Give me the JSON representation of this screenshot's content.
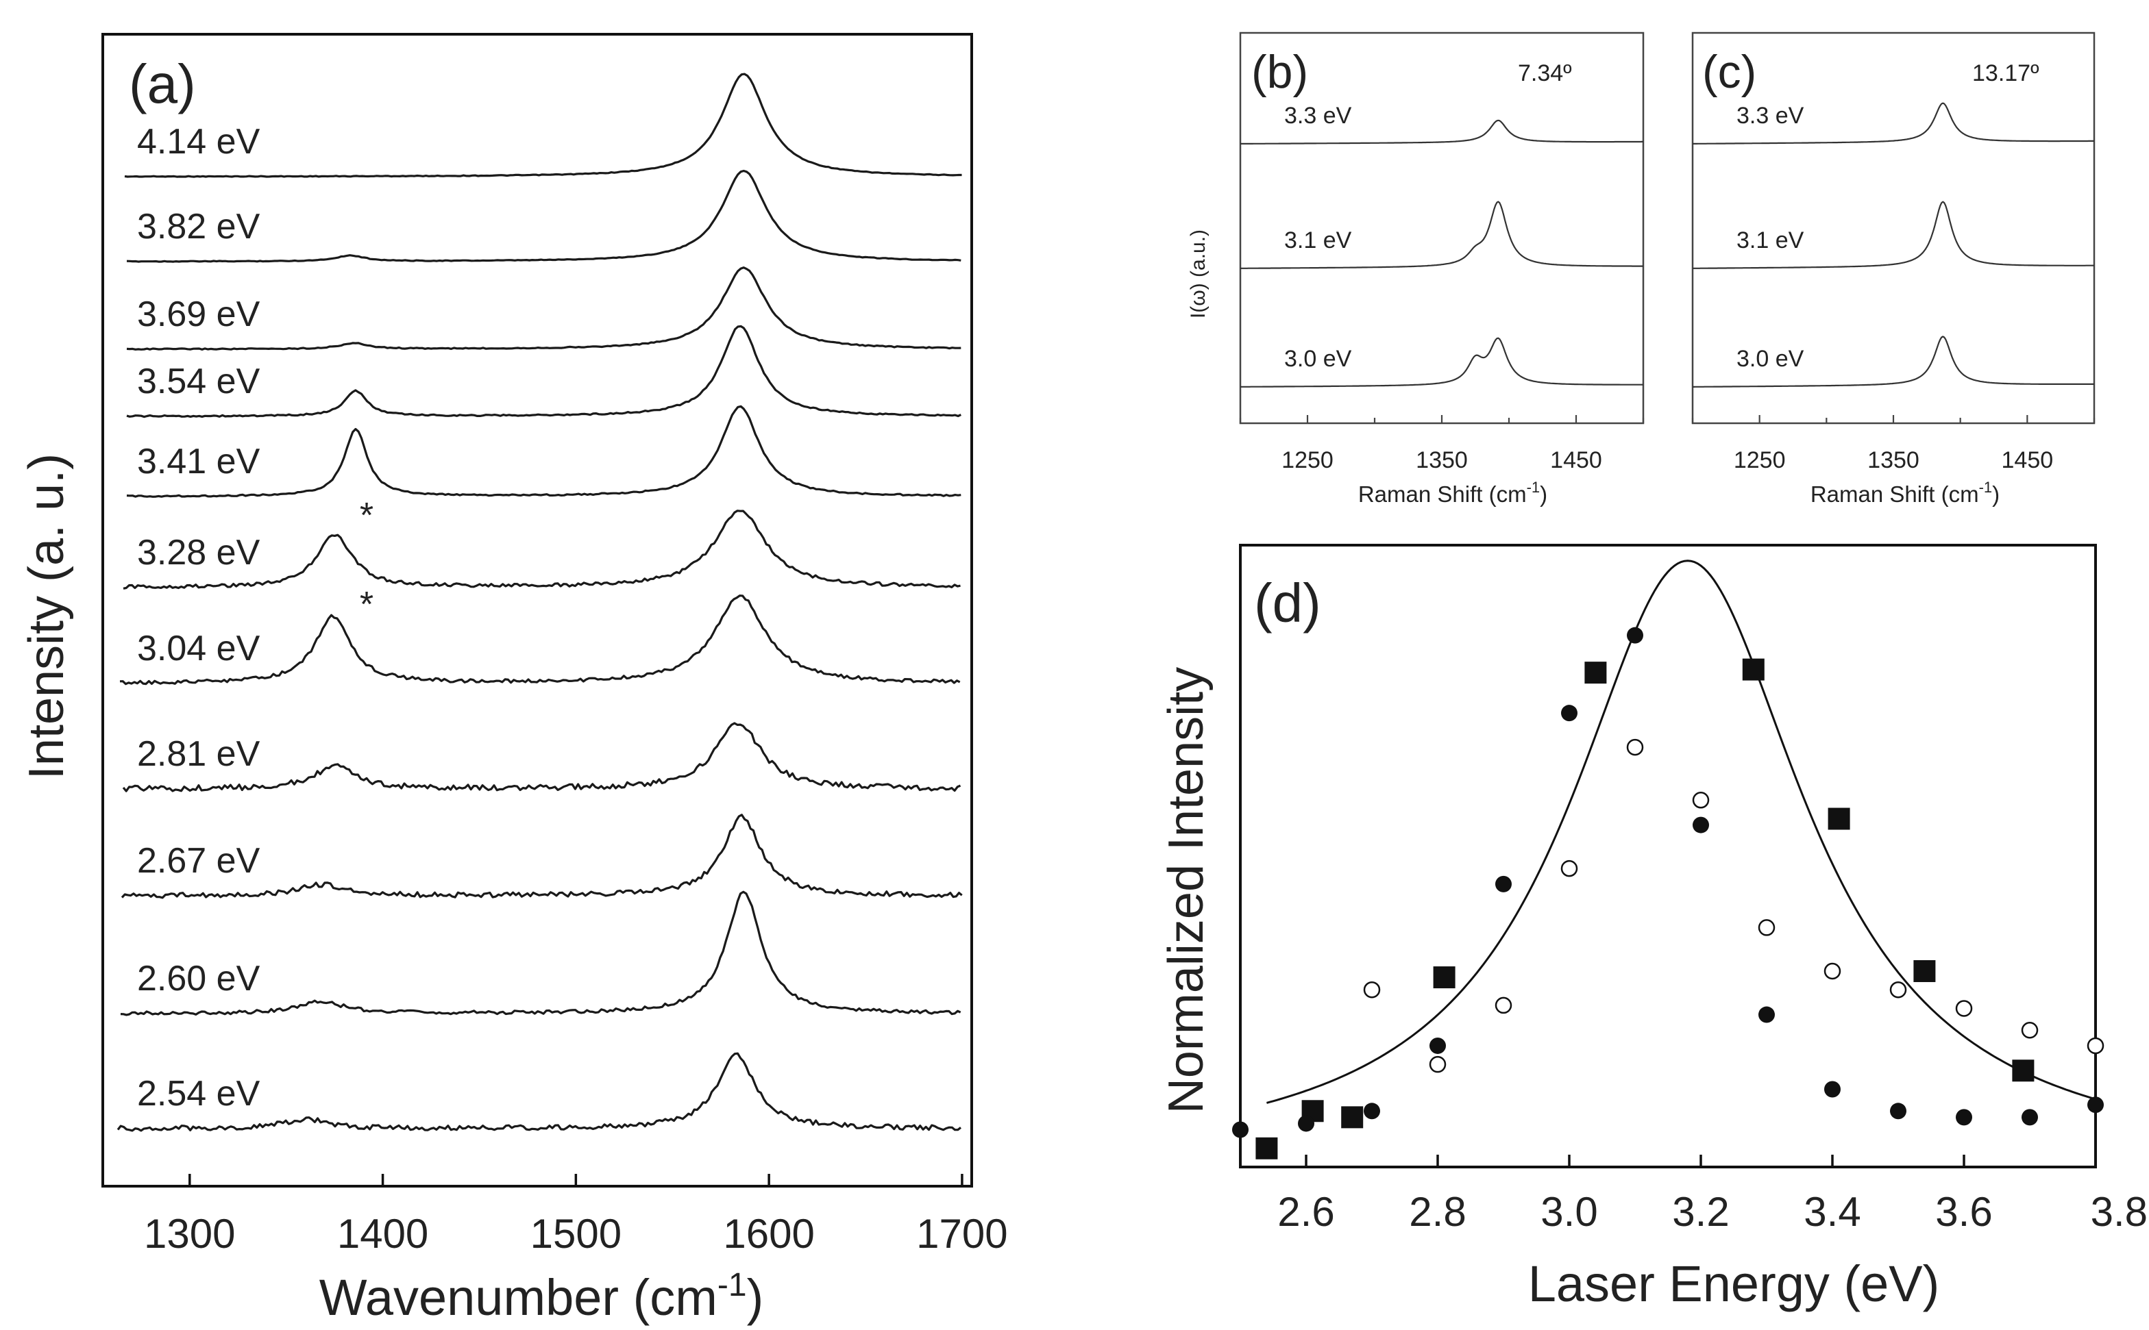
{
  "chart_data": [
    {
      "panel": "(a)",
      "type": "line",
      "xlabel": "Wavenumber (cm",
      "xlabel_sup": "-1",
      "xlabel_close": ")",
      "ylabel": "Intensity (a. u.)",
      "xlim": [
        1255,
        1705
      ],
      "xticks": [
        "1300",
        "1400",
        "1500",
        "1600",
        "1700"
      ],
      "xtick_values": [
        1300,
        1400,
        1500,
        1600,
        1700
      ],
      "annotations": [
        "*",
        "*"
      ],
      "series": [
        {
          "name": "4.14 eV",
          "d_peak": 0.0,
          "d_width": 0,
          "g_peak": 1587,
          "g_height": 1.0,
          "g_width": 14
        },
        {
          "name": "3.82 eV",
          "d_peak": 1383,
          "d_height": 0.06,
          "d_width": 9,
          "g_peak": 1587,
          "g_height": 0.95,
          "g_width": 14
        },
        {
          "name": "3.69 eV",
          "d_peak": 1385,
          "d_height": 0.06,
          "d_width": 9,
          "g_peak": 1587,
          "g_height": 0.85,
          "g_width": 14
        },
        {
          "name": "3.54 eV",
          "d_peak": 1386,
          "d_height": 0.28,
          "d_width": 7,
          "g_peak": 1585,
          "g_height": 1.0,
          "g_width": 12
        },
        {
          "name": "3.41 eV",
          "d_peak": 1386,
          "d_height": 0.75,
          "d_width": 7,
          "g_peak": 1585,
          "g_height": 1.0,
          "g_width": 12
        },
        {
          "name": "3.28 eV",
          "d_peak": 1375,
          "d_height": 0.55,
          "d_width": 11,
          "g_peak": 1585,
          "g_height": 0.8,
          "g_width": 16
        },
        {
          "name": "3.04 eV",
          "d_peak": 1374,
          "d_height": 0.65,
          "d_width": 11,
          "g_peak": 1585,
          "g_height": 0.85,
          "g_width": 16
        },
        {
          "name": "2.81 eV",
          "d_peak": 1375,
          "d_height": 0.25,
          "d_width": 13,
          "g_peak": 1584,
          "g_height": 0.75,
          "g_width": 14
        },
        {
          "name": "2.67 eV",
          "d_peak": 1368,
          "d_height": 0.12,
          "d_width": 14,
          "g_peak": 1586,
          "g_height": 0.85,
          "g_width": 12
        },
        {
          "name": "2.60 eV",
          "d_peak": 1368,
          "d_height": 0.1,
          "d_width": 14,
          "g_peak": 1587,
          "g_height": 1.0,
          "g_width": 11
        },
        {
          "name": "2.54 eV",
          "d_peak": 1360,
          "d_height": 0.1,
          "d_width": 14,
          "g_peak": 1583,
          "g_height": 0.8,
          "g_width": 12
        }
      ]
    },
    {
      "panel": "(b)",
      "type": "line",
      "angle": "7.34º",
      "xlabel": "Raman Shift (cm",
      "xlabel_sup": "-1",
      "xlabel_close": ")",
      "ylabel": "I(ω) (a.u.)",
      "xlim": [
        1200,
        1500
      ],
      "xticks": [
        "1250",
        "1350",
        "1450"
      ],
      "xtick_values": [
        1250,
        1350,
        1450
      ],
      "series": [
        {
          "name": "3.3 eV",
          "peak1": 1392,
          "h1": 0.45,
          "peak2": 1375,
          "h2": 0.0
        },
        {
          "name": "3.1 eV",
          "peak1": 1392,
          "h1": 1.3,
          "peak2": 1375,
          "h2": 0.2
        },
        {
          "name": "3.0 eV",
          "peak1": 1392,
          "h1": 0.9,
          "peak2": 1375,
          "h2": 0.45
        }
      ]
    },
    {
      "panel": "(c)",
      "type": "line",
      "angle": "13.17º",
      "xlabel": "Raman Shift (cm",
      "xlabel_sup": "-1",
      "xlabel_close": ")",
      "xlim": [
        1200,
        1500
      ],
      "xticks": [
        "1250",
        "1350",
        "1450"
      ],
      "xtick_values": [
        1250,
        1350,
        1450
      ],
      "series": [
        {
          "name": "3.3 eV",
          "peak1": 1387,
          "h1": 0.6
        },
        {
          "name": "3.1 eV",
          "peak1": 1387,
          "h1": 1.0
        },
        {
          "name": "3.0 eV",
          "peak1": 1387,
          "h1": 0.75
        }
      ]
    },
    {
      "panel": "(d)",
      "type": "scatter",
      "xlabel": "Laser Energy (eV)",
      "ylabel": "Normalized Intensity",
      "xlim": [
        2.5,
        3.8
      ],
      "ylim": [
        0,
        1.0
      ],
      "xticks": [
        "2.6",
        "2.8",
        "3.0",
        "3.2",
        "3.4",
        "3.6",
        "3.8"
      ],
      "xtick_values": [
        2.6,
        2.8,
        3.0,
        3.2,
        3.4,
        3.6,
        3.8
      ],
      "fit": {
        "type": "lorentzian",
        "center": 3.18,
        "peak": 0.975,
        "hwhm": 0.22,
        "x_range": [
          2.54,
          3.8
        ]
      },
      "series": [
        {
          "name": "squares",
          "marker": "square",
          "x": [
            2.54,
            2.61,
            2.67,
            2.81,
            3.04,
            3.28,
            3.41,
            3.54,
            3.69
          ],
          "y": [
            0.03,
            0.09,
            0.08,
            0.305,
            0.795,
            0.8,
            0.56,
            0.315,
            0.155
          ]
        },
        {
          "name": "filled circles",
          "marker": "filled-circle",
          "x": [
            2.5,
            2.6,
            2.7,
            2.8,
            2.9,
            3.0,
            3.1,
            3.2,
            3.3,
            3.4,
            3.5,
            3.6,
            3.7,
            3.8
          ],
          "y": [
            0.06,
            0.07,
            0.09,
            0.195,
            0.455,
            0.73,
            0.855,
            0.55,
            0.245,
            0.125,
            0.09,
            0.08,
            0.08,
            0.1
          ]
        },
        {
          "name": "open circles",
          "marker": "open-circle",
          "x": [
            2.7,
            2.8,
            2.9,
            3.0,
            3.1,
            3.2,
            3.3,
            3.4,
            3.5,
            3.6,
            3.7,
            3.8
          ],
          "y": [
            0.285,
            0.165,
            0.26,
            0.48,
            0.675,
            0.59,
            0.385,
            0.315,
            0.285,
            0.255,
            0.22,
            0.195
          ]
        }
      ]
    }
  ]
}
